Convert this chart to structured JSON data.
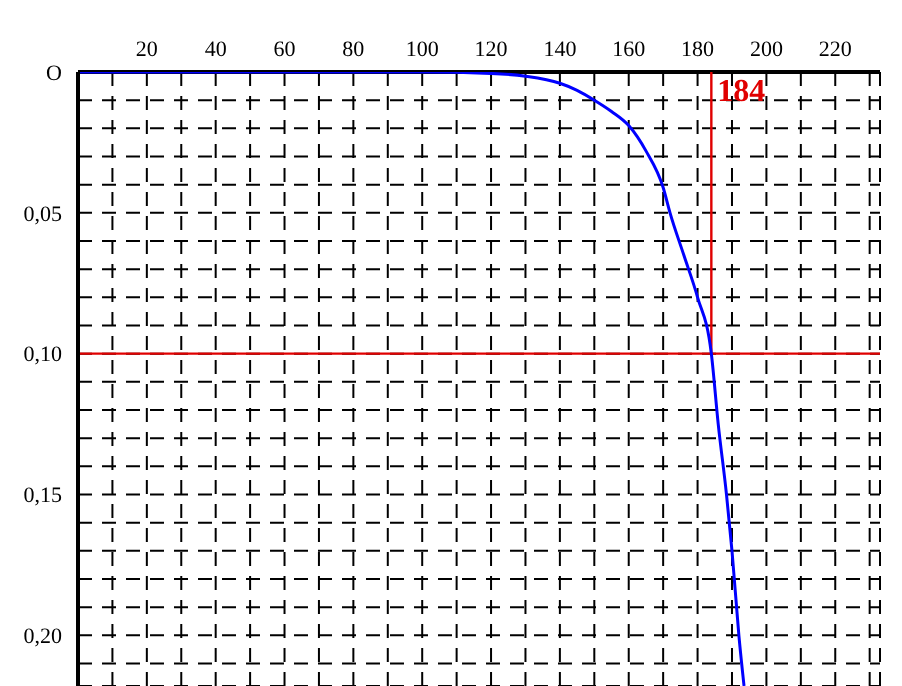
{
  "chart_data": {
    "type": "line",
    "x": [
      0,
      100,
      120,
      130,
      140,
      145,
      150,
      155,
      160,
      165,
      170,
      172,
      176,
      180,
      184,
      186,
      188.4,
      190,
      192,
      193.5
    ],
    "series": [
      {
        "color": "#0000ff",
        "values": [
          0,
          0,
          0.0005,
          0.0015,
          0.004,
          0.0065,
          0.01,
          0.014,
          0.019,
          0.028,
          0.041,
          0.05,
          0.065,
          0.08,
          0.1,
          0.125,
          0.15,
          0.17,
          0.2,
          0.218
        ]
      }
    ],
    "xlim": [
      0,
      233
    ],
    "ylim": [
      0.218,
      0
    ],
    "xticks": [
      {
        "value": 10,
        "label": null
      },
      20,
      {
        "value": 30,
        "label": null
      },
      40,
      {
        "value": 50,
        "label": null
      },
      60,
      {
        "value": 70,
        "label": null
      },
      80,
      {
        "value": 90,
        "label": null
      },
      100,
      {
        "value": 110,
        "label": null
      },
      120,
      {
        "value": 130,
        "label": null
      },
      140,
      {
        "value": 150,
        "label": null
      },
      160,
      {
        "value": 170,
        "label": null
      },
      180,
      {
        "value": 190,
        "label": null
      },
      200,
      {
        "value": 210,
        "label": null
      },
      220,
      {
        "value": 230,
        "label": null
      }
    ],
    "yticks": [
      {
        "value": 0,
        "label": "O"
      },
      {
        "value": 0.01,
        "label": null
      },
      {
        "value": 0.02,
        "label": null
      },
      {
        "value": 0.03,
        "label": null
      },
      {
        "value": 0.04,
        "label": null
      },
      {
        "value": 0.05,
        "label": "0,05"
      },
      {
        "value": 0.06,
        "label": null
      },
      {
        "value": 0.07,
        "label": null
      },
      {
        "value": 0.08,
        "label": null
      },
      {
        "value": 0.09,
        "label": null
      },
      {
        "value": 0.1,
        "label": "0,10"
      },
      {
        "value": 0.11,
        "label": null
      },
      {
        "value": 0.12,
        "label": null
      },
      {
        "value": 0.13,
        "label": null
      },
      {
        "value": 0.14,
        "label": null
      },
      {
        "value": 0.15,
        "label": "0,15"
      },
      {
        "value": 0.16,
        "label": null
      },
      {
        "value": 0.17,
        "label": null
      },
      {
        "value": 0.18,
        "label": null
      },
      {
        "value": 0.19,
        "label": null
      },
      {
        "value": 0.2,
        "label": "0,20"
      },
      {
        "value": 0.21,
        "label": null
      }
    ],
    "grid": true,
    "marker": "none",
    "line_style": "solid",
    "legend": false,
    "ref_lines": [
      {
        "axis": "y",
        "value": 0.1,
        "color": "#e00000"
      },
      {
        "axis": "x",
        "value": 184,
        "label": "184",
        "color": "#e00000"
      }
    ]
  }
}
